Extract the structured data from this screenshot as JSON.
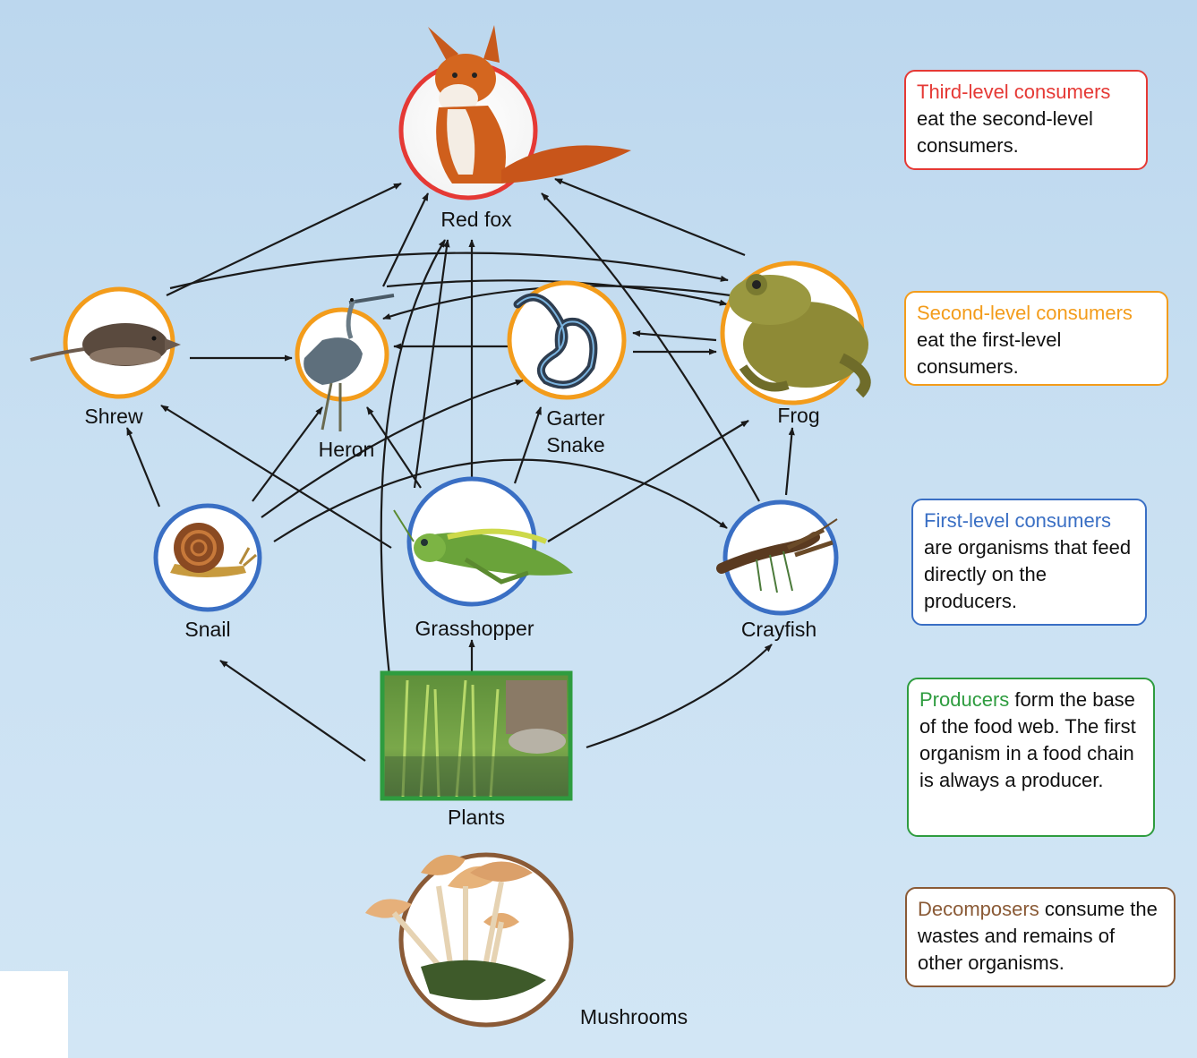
{
  "colors": {
    "third": "#e53935",
    "second": "#f39c1b",
    "first": "#3a6fc4",
    "producer": "#2e9c3f",
    "decomposer": "#8a5a36"
  },
  "organisms": {
    "red_fox": "Red fox",
    "shrew": "Shrew",
    "heron": "Heron",
    "garter_snake_line1": "Garter",
    "garter_snake_line2": "Snake",
    "frog": "Frog",
    "snail": "Snail",
    "grasshopper": "Grasshopper",
    "crayfish": "Crayfish",
    "plants": "Plants",
    "mushrooms": "Mushrooms"
  },
  "legend": {
    "third": {
      "term": "Third-level consumers",
      "text": "eat the second-level consumers."
    },
    "second": {
      "term": "Second-level consumers",
      "text": "eat the first-level consumers."
    },
    "first": {
      "term": "First-level consumers",
      "text": "are organisms that feed directly on the producers."
    },
    "producer": {
      "term": "Producers",
      "text": "form the base of the food web. The first organism in a food chain is always a producer."
    },
    "decomposer": {
      "term": "Decomposers",
      "text": "consume the wastes and remains of other organisms."
    }
  }
}
